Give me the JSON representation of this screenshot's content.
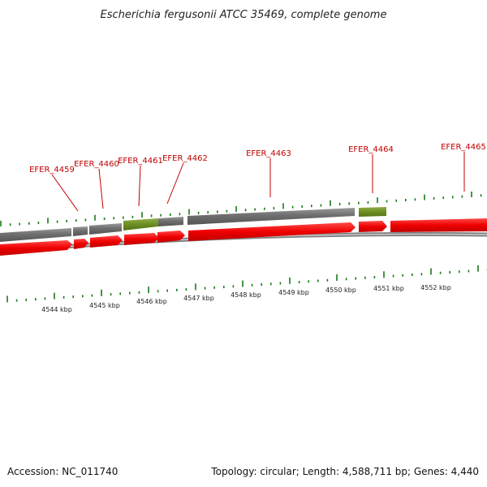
{
  "title": "Escherichia fergusonii ATCC 35469, complete genome",
  "footer": {
    "accession": "Accession: NC_011740",
    "summary": "Topology: circular; Length: 4,588,711 bp; Genes: 4,440"
  },
  "colors": {
    "cds": "#ee0000",
    "gene": "#707070",
    "rna": "#6b8e23",
    "tick": "#1a7a1a",
    "label": "#c00000",
    "backbone": "#888888"
  },
  "gene_labels": [
    "EFER_4459",
    "EFER_4460",
    "EFER_4461",
    "EFER_4462",
    "EFER_4463",
    "EFER_4464",
    "EFER_4465"
  ],
  "kbp_labels": [
    "4544 kbp",
    "4545 kbp",
    "4546 kbp",
    "4547 kbp",
    "4548 kbp",
    "4549 kbp",
    "4550 kbp",
    "4551 kbp",
    "4552 kbp"
  ]
}
